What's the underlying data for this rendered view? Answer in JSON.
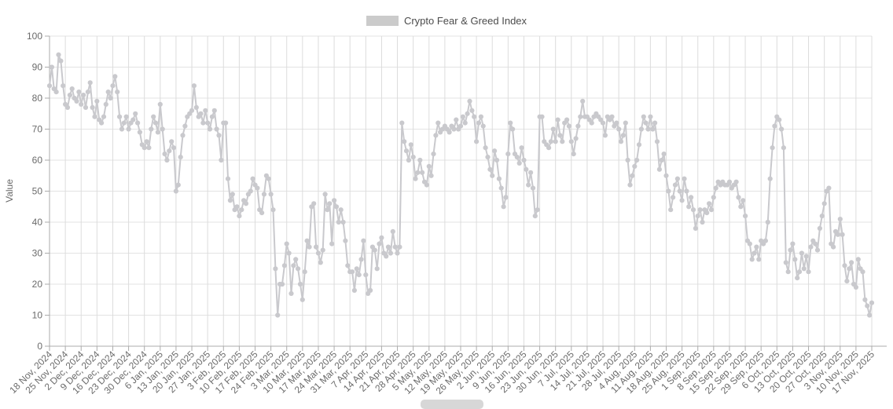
{
  "legend": {
    "label": "Crypto Fear & Greed Index"
  },
  "chart_data": {
    "type": "line",
    "title": "Crypto Fear & Greed Index",
    "xlabel": "",
    "ylabel": "Value",
    "ylim": [
      0,
      100
    ],
    "y_ticks": [
      0,
      10,
      20,
      30,
      40,
      50,
      60,
      70,
      80,
      90,
      100
    ],
    "grid": true,
    "legend_position": "top",
    "x_frequency": "daily",
    "x_start_date": "18 Nov, 2024",
    "x_end_date": "17 Nov, 2025",
    "x_tick_labels": [
      "18 Nov, 2024",
      "25 Nov, 2024",
      "2 Dec, 2024",
      "9 Dec, 2024",
      "16 Dec, 2024",
      "23 Dec, 2024",
      "30 Dec, 2024",
      "6 Jan, 2025",
      "13 Jan, 2025",
      "20 Jan, 2025",
      "27 Jan, 2025",
      "3 Feb, 2025",
      "10 Feb, 2025",
      "17 Feb, 2025",
      "24 Feb, 2025",
      "3 Mar, 2025",
      "10 Mar, 2025",
      "17 Mar, 2025",
      "24 Mar, 2025",
      "31 Mar, 2025",
      "7 Apr, 2025",
      "14 Apr, 2025",
      "21 Apr, 2025",
      "28 Apr, 2025",
      "5 May, 2025",
      "12 May, 2025",
      "19 May, 2025",
      "26 May, 2025",
      "2 Jun, 2025",
      "9 Jun, 2025",
      "16 Jun, 2025",
      "23 Jun, 2025",
      "30 Jun, 2025",
      "7 Jul, 2025",
      "14 Jul, 2025",
      "21 Jul, 2025",
      "28 Jul, 2025",
      "4 Aug, 2025",
      "11 Aug, 2025",
      "18 Aug, 2025",
      "25 Aug, 2025",
      "1 Sep, 2025",
      "8 Sep, 2025",
      "15 Sep, 2025",
      "22 Sep, 2025",
      "29 Sep, 2025",
      "6 Oct, 2025",
      "13 Oct, 2025",
      "20 Oct, 2025",
      "27 Oct, 2025",
      "3 Nov, 2025",
      "10 Nov, 2025",
      "17 Nov, 2025"
    ],
    "series": [
      {
        "name": "Crypto Fear & Greed Index",
        "color": "#c9c9cd",
        "marker": "circle",
        "values": [
          84,
          90,
          83,
          82,
          94,
          92,
          84,
          78,
          77,
          81,
          83,
          80,
          79,
          82,
          78,
          81,
          77,
          82,
          85,
          77,
          74,
          79,
          73,
          72,
          74,
          78,
          82,
          80,
          84,
          87,
          82,
          74,
          70,
          72,
          74,
          70,
          72,
          73,
          75,
          72,
          69,
          65,
          64,
          66,
          64,
          70,
          74,
          72,
          69,
          78,
          70,
          62,
          60,
          63,
          66,
          64,
          50,
          52,
          61,
          68,
          71,
          74,
          75,
          76,
          84,
          77,
          74,
          75,
          72,
          76,
          72,
          70,
          74,
          76,
          70,
          68,
          60,
          72,
          72,
          54,
          47,
          49,
          44,
          45,
          42,
          44,
          47,
          46,
          49,
          50,
          54,
          52,
          51,
          44,
          43,
          49,
          55,
          54,
          49,
          44,
          25,
          10,
          20,
          20,
          26,
          33,
          30,
          17,
          26,
          28,
          25,
          20,
          15,
          24,
          34,
          32,
          45,
          46,
          32,
          30,
          27,
          31,
          49,
          44,
          46,
          33,
          47,
          45,
          40,
          44,
          40,
          34,
          26,
          24,
          24,
          18,
          25,
          23,
          28,
          34,
          23,
          17,
          18,
          32,
          31,
          25,
          33,
          35,
          30,
          29,
          32,
          30,
          37,
          32,
          30,
          32,
          72,
          66,
          63,
          60,
          65,
          61,
          54,
          56,
          60,
          56,
          53,
          52,
          58,
          55,
          62,
          68,
          72,
          69,
          70,
          71,
          70,
          69,
          71,
          70,
          73,
          70,
          71,
          74,
          72,
          75,
          79,
          76,
          74,
          66,
          72,
          74,
          71,
          64,
          61,
          57,
          55,
          63,
          60,
          54,
          51,
          45,
          48,
          62,
          72,
          70,
          62,
          61,
          59,
          64,
          60,
          57,
          52,
          56,
          51,
          42,
          44,
          74,
          74,
          66,
          65,
          64,
          66,
          70,
          66,
          73,
          68,
          66,
          72,
          73,
          71,
          66,
          62,
          67,
          71,
          74,
          79,
          74,
          74,
          73,
          72,
          74,
          75,
          74,
          73,
          72,
          68,
          74,
          73,
          74,
          71,
          72,
          70,
          66,
          68,
          72,
          60,
          52,
          55,
          58,
          60,
          65,
          70,
          74,
          72,
          70,
          74,
          70,
          72,
          66,
          57,
          60,
          62,
          55,
          50,
          44,
          48,
          52,
          54,
          50,
          47,
          54,
          50,
          45,
          48,
          44,
          38,
          42,
          44,
          40,
          44,
          43,
          46,
          44,
          48,
          51,
          53,
          52,
          53,
          52,
          52,
          53,
          51,
          52,
          53,
          48,
          45,
          47,
          42,
          34,
          33,
          28,
          30,
          32,
          28,
          34,
          33,
          34,
          40,
          54,
          64,
          71,
          74,
          73,
          70,
          64,
          27,
          24,
          31,
          33,
          28,
          22,
          24,
          30,
          25,
          29,
          24,
          32,
          34,
          33,
          31,
          38,
          42,
          46,
          50,
          51,
          33,
          32,
          37,
          36,
          41,
          36,
          26,
          21,
          25,
          27,
          20,
          19,
          28,
          25,
          24,
          15,
          13,
          10,
          14
        ]
      }
    ],
    "colors": {
      "series": "#c9c9cd",
      "grid_horizontal": "#e3e3e3",
      "grid_vertical": "#dcdcdc",
      "axis_line": "#ababab",
      "tick_text": "#6b6b6b",
      "legend_text": "#4b4b4b",
      "legend_swatch": "#cbcbcb"
    }
  }
}
